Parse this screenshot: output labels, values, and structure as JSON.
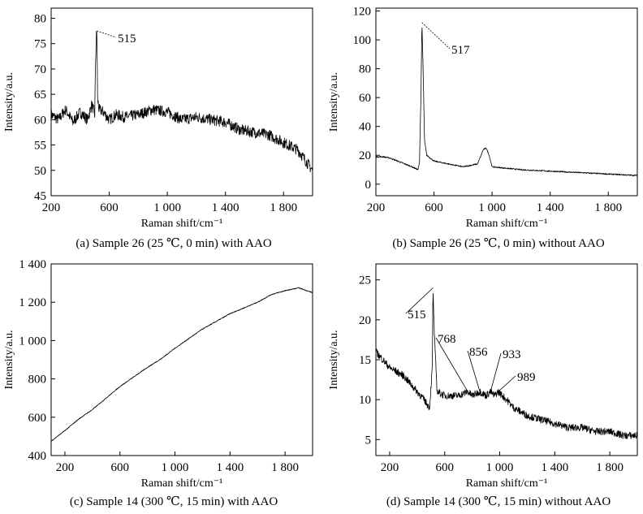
{
  "chart_data": [
    {
      "type": "line",
      "caption": "(a) Sample 26 (25 ℃, 0 min) with AAO",
      "xlabel": "Raman shift/cm⁻¹",
      "ylabel": "Intensity/a.u.",
      "xlim": [
        200,
        2000
      ],
      "ylim": [
        45,
        82
      ],
      "xticks": [
        200,
        600,
        1000,
        1400,
        1800
      ],
      "xtick_labels": [
        "200",
        "600",
        "1 000",
        "1 400",
        "1 800"
      ],
      "yticks": [
        45,
        50,
        55,
        60,
        65,
        70,
        75,
        80
      ],
      "ytick_labels": [
        "45",
        "50",
        "55",
        "60",
        "65",
        "70",
        "75",
        "80"
      ],
      "series": [
        {
          "x": [
            200,
            250,
            300,
            350,
            400,
            450,
            480,
            500,
            505,
            510,
            515,
            520,
            530,
            560,
            600,
            650,
            700,
            800,
            900,
            1000,
            1100,
            1200,
            1300,
            1400,
            1500,
            1600,
            1700,
            1800,
            1900,
            2000
          ],
          "y": [
            61,
            60,
            62,
            59.5,
            61.5,
            60,
            63,
            61,
            70,
            76,
            77.5,
            64,
            62,
            61.5,
            60,
            61,
            60.5,
            61,
            62,
            61.5,
            60,
            60.5,
            60,
            59.5,
            58,
            57.5,
            57,
            55.5,
            54,
            50
          ]
        }
      ],
      "annotations": [
        {
          "text": "515",
          "x": 515,
          "y": 77.5
        }
      ]
    },
    {
      "type": "line",
      "caption": "(b) Sample 26 (25 ℃, 0 min) without AAO",
      "xlabel": "Raman shift/cm⁻¹",
      "ylabel": "Intensity/a.u.",
      "xlim": [
        200,
        2000
      ],
      "ylim": [
        -8,
        122
      ],
      "xticks": [
        200,
        600,
        1000,
        1400,
        1800
      ],
      "xtick_labels": [
        "200",
        "600",
        "1 000",
        "1 400",
        "1 800"
      ],
      "yticks": [
        0,
        20,
        40,
        60,
        80,
        100,
        120
      ],
      "ytick_labels": [
        "0",
        "20",
        "40",
        "60",
        "80",
        "100",
        "120"
      ],
      "series": [
        {
          "x": [
            200,
            250,
            300,
            350,
            400,
            450,
            490,
            500,
            510,
            517,
            525,
            535,
            550,
            600,
            700,
            800,
            900,
            940,
            960,
            980,
            1000,
            1100,
            1200,
            1400,
            1600,
            1800,
            2000
          ],
          "y": [
            19,
            19,
            18,
            16,
            14,
            12,
            10,
            15,
            60,
            112,
            80,
            30,
            20,
            16,
            14,
            12,
            14,
            24,
            25,
            20,
            12,
            11,
            10,
            9,
            8,
            7,
            6
          ]
        }
      ],
      "annotations": [
        {
          "text": "517",
          "x": 517,
          "y": 112
        }
      ]
    },
    {
      "type": "line",
      "caption": "(c) Sample 14 (300 ℃, 15 min) with AAO",
      "xlabel": "Raman shift/cm⁻¹",
      "ylabel": "Intensity/a.u.",
      "xlim": [
        100,
        2000
      ],
      "ylim": [
        400,
        1400
      ],
      "xticks": [
        200,
        600,
        1000,
        1400,
        1800
      ],
      "xtick_labels": [
        "200",
        "600",
        "1 000",
        "1 400",
        "1 800"
      ],
      "yticks": [
        400,
        600,
        800,
        1000,
        1200,
        1400
      ],
      "ytick_labels": [
        "400",
        "600",
        "800",
        "1 000",
        "1 200",
        "1 400"
      ],
      "series": [
        {
          "x": [
            100,
            200,
            300,
            400,
            500,
            600,
            700,
            800,
            900,
            1000,
            1100,
            1200,
            1300,
            1400,
            1500,
            1600,
            1700,
            1800,
            1900,
            2000
          ],
          "y": [
            475,
            530,
            590,
            640,
            700,
            760,
            810,
            860,
            905,
            960,
            1010,
            1060,
            1100,
            1140,
            1170,
            1200,
            1240,
            1260,
            1275,
            1250
          ]
        }
      ],
      "annotations": []
    },
    {
      "type": "line",
      "caption": "(d) Sample 14 (300 ℃, 15 min) without AAO",
      "xlabel": "Raman shift/cm⁻¹",
      "ylabel": "Intensity/a.u.",
      "xlim": [
        100,
        2000
      ],
      "ylim": [
        3,
        27
      ],
      "xticks": [
        200,
        600,
        1000,
        1400,
        1800
      ],
      "xtick_labels": [
        "200",
        "600",
        "1 000",
        "1 400",
        "1 800"
      ],
      "yticks": [
        5,
        10,
        15,
        20,
        25
      ],
      "ytick_labels": [
        "5",
        "10",
        "15",
        "20",
        "25"
      ],
      "series": [
        {
          "x": [
            100,
            150,
            200,
            300,
            400,
            450,
            490,
            510,
            515,
            525,
            545,
            600,
            700,
            768,
            800,
            856,
            900,
            933,
            960,
            989,
            1050,
            1100,
            1200,
            1300,
            1400,
            1500,
            1600,
            1700,
            1800,
            1900,
            2000
          ],
          "y": [
            16,
            15,
            14,
            13,
            11,
            10,
            9,
            14,
            24,
            18,
            11,
            10.5,
            10.5,
            11,
            10.5,
            11,
            10.5,
            11,
            10.5,
            11,
            10,
            9,
            8,
            7.5,
            7,
            6.5,
            6.5,
            6,
            6,
            5.5,
            5.5
          ]
        }
      ],
      "annotations": [
        {
          "text": "515",
          "x": 515,
          "y": 24
        },
        {
          "text": "768",
          "x": 768,
          "y": 11
        },
        {
          "text": "856",
          "x": 856,
          "y": 11
        },
        {
          "text": "933",
          "x": 933,
          "y": 11
        },
        {
          "text": "989",
          "x": 989,
          "y": 11
        }
      ]
    }
  ]
}
